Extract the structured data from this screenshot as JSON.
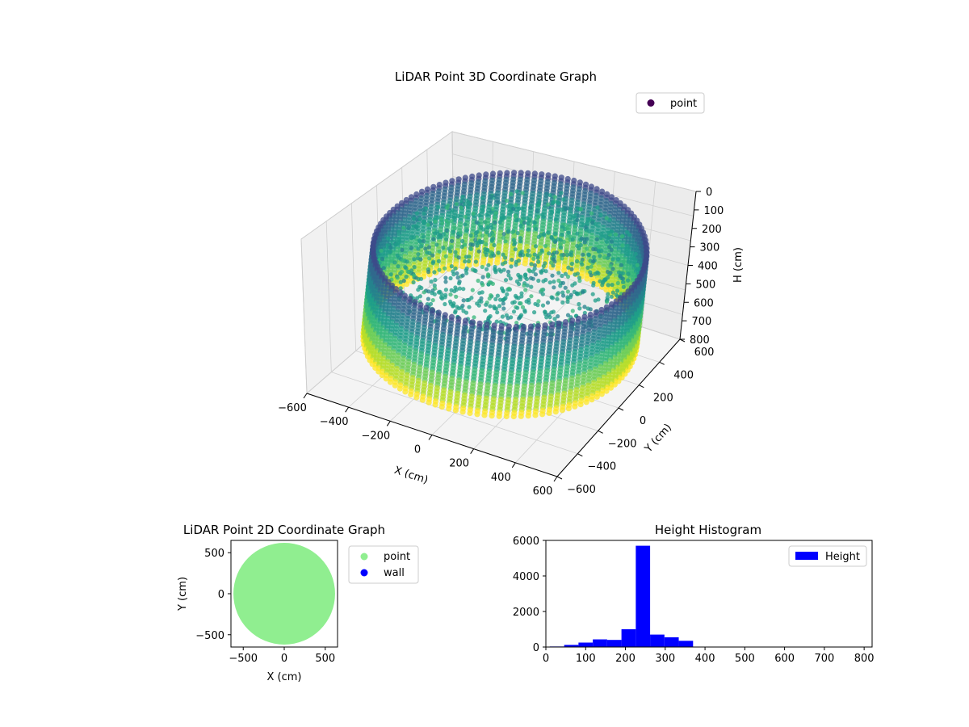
{
  "chart_data": [
    {
      "type": "scatter",
      "subtype": "3d",
      "title": "LiDAR Point 3D Coordinate Graph",
      "xlabel": "X (cm)",
      "ylabel": "Y (cm)",
      "zlabel": "H (cm)",
      "xlim": [
        -600,
        600
      ],
      "ylim": [
        -600,
        600
      ],
      "zlim": [
        0,
        800
      ],
      "z_inverted": true,
      "xticks": [
        "−600",
        "−400",
        "−200",
        "0",
        "200",
        "400",
        "600"
      ],
      "yticks": [
        "−600",
        "−400",
        "−200",
        "0",
        "200",
        "400",
        "600"
      ],
      "zticks": [
        "0",
        "100",
        "200",
        "300",
        "400",
        "500",
        "600",
        "700",
        "800"
      ],
      "grid": true,
      "legend": {
        "position": "top-right",
        "entries": [
          {
            "label": "point",
            "color": "#440154"
          }
        ]
      },
      "colormap": "viridis",
      "description_series": [
        {
          "name": "point",
          "ring_radius": 600,
          "ring_height_range": [
            150,
            650
          ],
          "floor_height": 230
        }
      ]
    },
    {
      "type": "scatter",
      "title": "LiDAR Point 2D Coordinate Graph",
      "xlabel": "X (cm)",
      "ylabel": "Y (cm)",
      "xlim": [
        -650,
        650
      ],
      "ylim": [
        -650,
        650
      ],
      "xticks": [
        "−500",
        "0",
        "500"
      ],
      "yticks": [
        "500",
        "0",
        "−500"
      ],
      "legend": {
        "position": "right-outside",
        "entries": [
          {
            "label": "point",
            "color": "#90ee90"
          },
          {
            "label": "wall",
            "color": "#0000ff"
          }
        ]
      },
      "series": [
        {
          "name": "point",
          "shape": "disk",
          "center": [
            0,
            0
          ],
          "radius": 620,
          "color": "#90ee90"
        }
      ]
    },
    {
      "type": "bar",
      "subtype": "histogram",
      "title": "Height Histogram",
      "xlim": [
        0,
        820
      ],
      "ylim": [
        0,
        6000
      ],
      "xticks": [
        "0",
        "100",
        "200",
        "300",
        "400",
        "500",
        "600",
        "700",
        "800"
      ],
      "yticks": [
        "0",
        "2000",
        "4000",
        "6000"
      ],
      "legend": {
        "position": "top-right",
        "entries": [
          {
            "label": "Height",
            "color": "#0000ff"
          }
        ]
      },
      "bin_width": 36,
      "bins": [
        {
          "x0": 10,
          "x1": 46,
          "count": 30
        },
        {
          "x0": 46,
          "x1": 82,
          "count": 120
        },
        {
          "x0": 82,
          "x1": 118,
          "count": 250
        },
        {
          "x0": 118,
          "x1": 154,
          "count": 430
        },
        {
          "x0": 154,
          "x1": 190,
          "count": 400
        },
        {
          "x0": 190,
          "x1": 226,
          "count": 1000
        },
        {
          "x0": 226,
          "x1": 262,
          "count": 5700
        },
        {
          "x0": 262,
          "x1": 298,
          "count": 700
        },
        {
          "x0": 298,
          "x1": 334,
          "count": 550
        },
        {
          "x0": 334,
          "x1": 370,
          "count": 350
        }
      ]
    }
  ]
}
